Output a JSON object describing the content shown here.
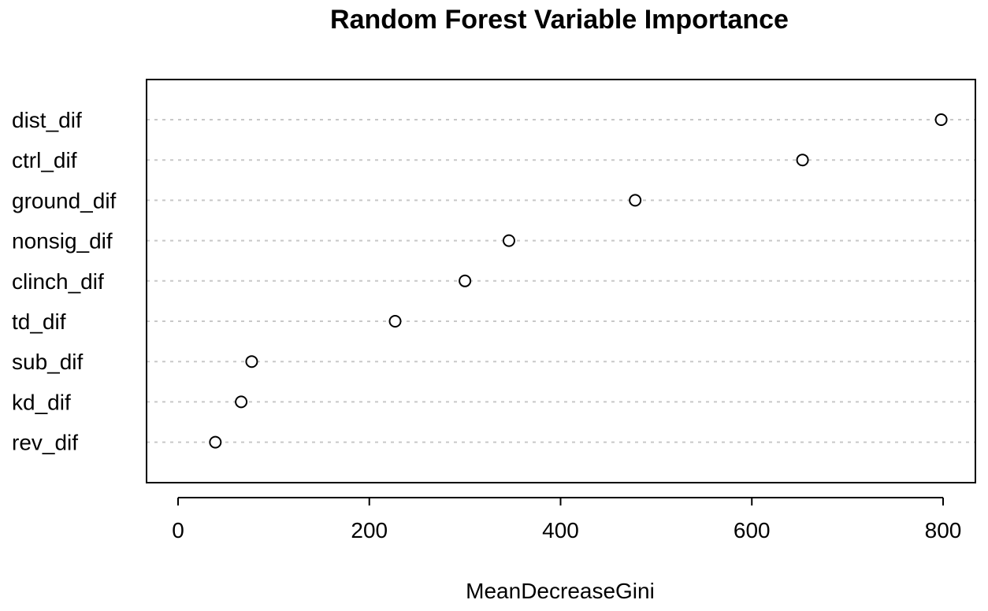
{
  "chart_data": {
    "type": "scatter",
    "subtype": "dotchart",
    "title": "Random Forest Variable Importance",
    "xlabel": "MeanDecreaseGini",
    "ylabel": "",
    "categories": [
      "dist_dif",
      "ctrl_dif",
      "ground_dif",
      "nonsig_dif",
      "clinch_dif",
      "td_dif",
      "sub_dif",
      "kd_dif",
      "rev_dif"
    ],
    "values": [
      798,
      653,
      478,
      346,
      300,
      227,
      77,
      66,
      39
    ],
    "xlim": [
      0,
      800
    ],
    "xticks": [
      0,
      200,
      400,
      600,
      800
    ],
    "xtick_labels": [
      "0",
      "200",
      "400",
      "600",
      "800"
    ],
    "grid": "horizontal dotted guide lines",
    "legend": "none"
  }
}
